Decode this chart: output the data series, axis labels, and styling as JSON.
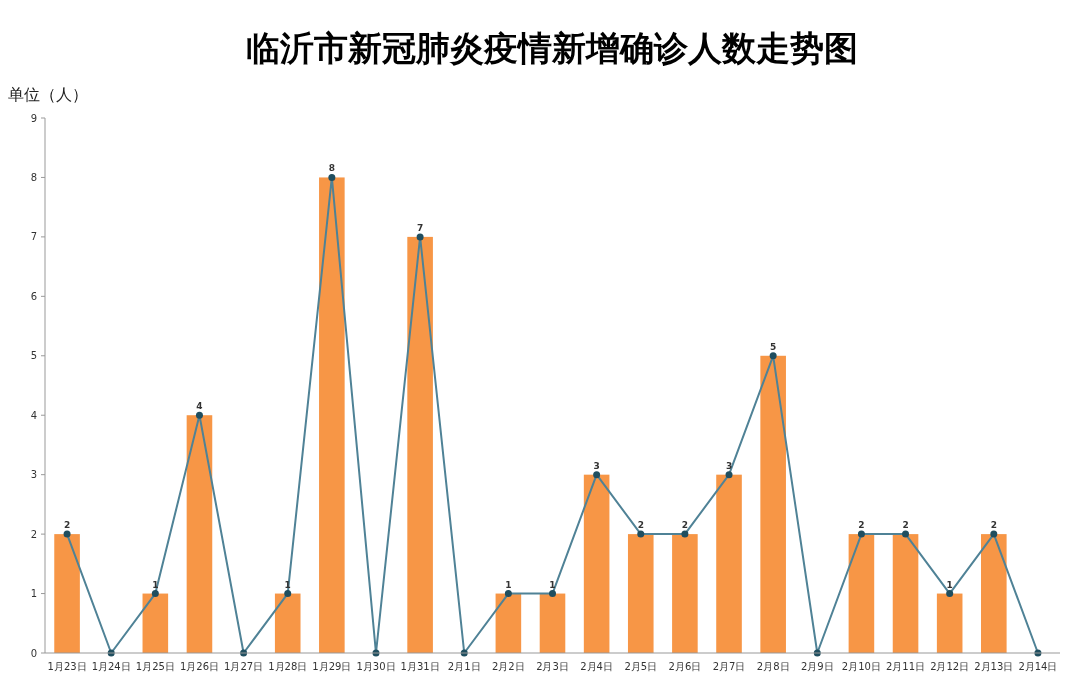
{
  "chart_data": {
    "type": "bar",
    "title": "临沂市新冠肺炎疫情新增确诊人数走势图",
    "ylabel": "单位（人）",
    "categories": [
      "1月23日",
      "1月24日",
      "1月25日",
      "1月26日",
      "1月27日",
      "1月28日",
      "1月29日",
      "1月30日",
      "1月31日",
      "2月1日",
      "2月2日",
      "2月3日",
      "2月4日",
      "2月5日",
      "2月6日",
      "2月7日",
      "2月8日",
      "2月9日",
      "2月10日",
      "2月11日",
      "2月12日",
      "2月13日",
      "2月14日"
    ],
    "series": [
      {
        "color": "#f79646",
        "values": [
          2,
          0,
          1,
          4,
          0,
          1,
          8,
          0,
          7,
          0,
          1,
          1,
          3,
          2,
          2,
          3,
          5,
          0,
          2,
          2,
          1,
          2,
          0
        ]
      },
      {
        "type": "line",
        "color": "#4f8296",
        "marker": "circle",
        "line_style": "solid",
        "values": [
          2,
          0,
          1,
          4,
          0,
          1,
          8,
          0,
          7,
          0,
          1,
          1,
          3,
          2,
          2,
          3,
          5,
          0,
          2,
          2,
          1,
          2,
          0
        ],
        "value_labels": [
          "2",
          null,
          "1",
          "4",
          null,
          "1",
          "8",
          null,
          "7",
          null,
          "1",
          "1",
          "3",
          "2",
          "2",
          "3",
          "5",
          null,
          "2",
          "2",
          "1",
          "2",
          null
        ]
      }
    ],
    "ylim": [
      0,
      9
    ],
    "yticks": [
      0,
      1,
      2,
      3,
      4,
      5,
      6,
      7,
      8,
      9
    ],
    "grid": false
  }
}
